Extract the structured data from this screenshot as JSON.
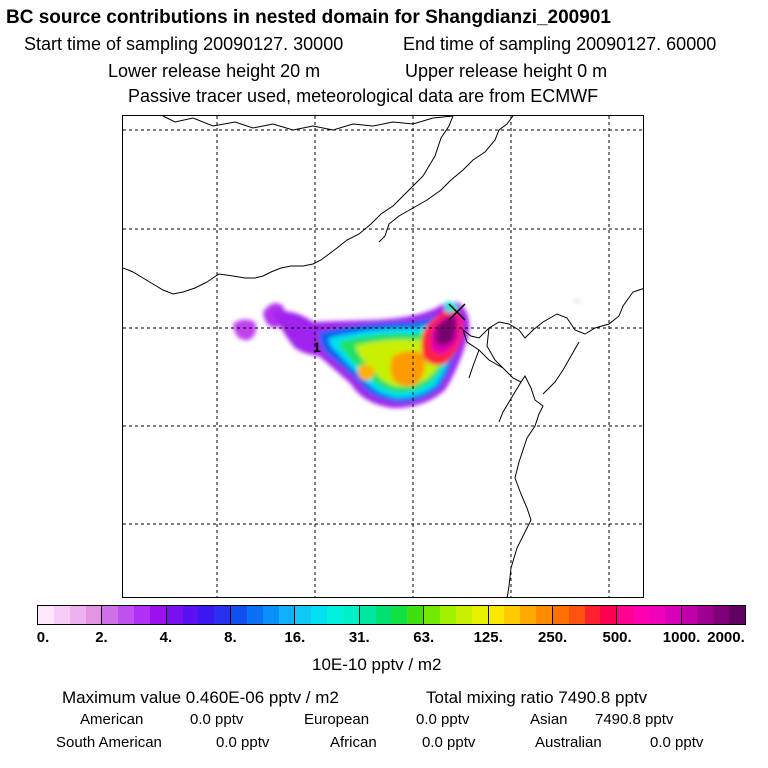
{
  "header": {
    "title": "BC  source contributions in nested domain for Shangdianzi_200901",
    "start_time": "Start time of sampling 20090127. 30000",
    "end_time": "End time of sampling 20090127. 60000",
    "lower_height": "Lower release height   20 m",
    "upper_height": "Upper release height    0 m",
    "tracer_note": "Passive tracer used, meteorological data are from ECMWF"
  },
  "map": {
    "station_marker": "1"
  },
  "colorbar": {
    "ticks": [
      "0.",
      "2.",
      "4.",
      "8.",
      "16.",
      "31.",
      "63.",
      "125.",
      "250.",
      "500.",
      "1000.",
      "2000."
    ],
    "units": "10E-10 pptv / m2",
    "segments": [
      [
        "#ffe6ff",
        "#f8ccf8",
        "#eeb0ee",
        "#e294e2"
      ],
      [
        "#d070e8",
        "#c050f0",
        "#b030f5",
        "#9c10ee"
      ],
      [
        "#7a10f0",
        "#5a10f0",
        "#3c18f0",
        "#2a30f0"
      ],
      [
        "#1050f0",
        "#0a70f5",
        "#0a90fa",
        "#10b0fa"
      ],
      [
        "#10c8f8",
        "#00e0f0",
        "#00f0e0",
        "#00f0c8"
      ],
      [
        "#00e8a0",
        "#00e070",
        "#10e040",
        "#40e010"
      ],
      [
        "#70e800",
        "#a0f000",
        "#c8f000",
        "#e8f000"
      ],
      [
        "#f8e800",
        "#ffcc00",
        "#ffaa00",
        "#ff8c00"
      ],
      [
        "#ff7000",
        "#ff5010",
        "#ff2030",
        "#ff0050"
      ],
      [
        "#ff0090",
        "#ff00b0",
        "#f000b8",
        "#d800b8"
      ],
      [
        "#c000a8",
        "#a00090",
        "#80007a",
        "#600060"
      ]
    ]
  },
  "stats": {
    "maximum": "Maximum value  0.460E-06 pptv / m2",
    "total": "Total mixing ratio     7490.8 pptv",
    "american_label": "American",
    "american_value": "0.0 pptv",
    "european_label": "European",
    "european_value": "0.0 pptv",
    "asian_label": "Asian",
    "asian_value": "7490.8 pptv",
    "south_american_label": "South American",
    "south_american_value": "0.0 pptv",
    "african_label": "African",
    "african_value": "0.0 pptv",
    "australian_label": "Australian",
    "australian_value": "0.0 pptv"
  }
}
